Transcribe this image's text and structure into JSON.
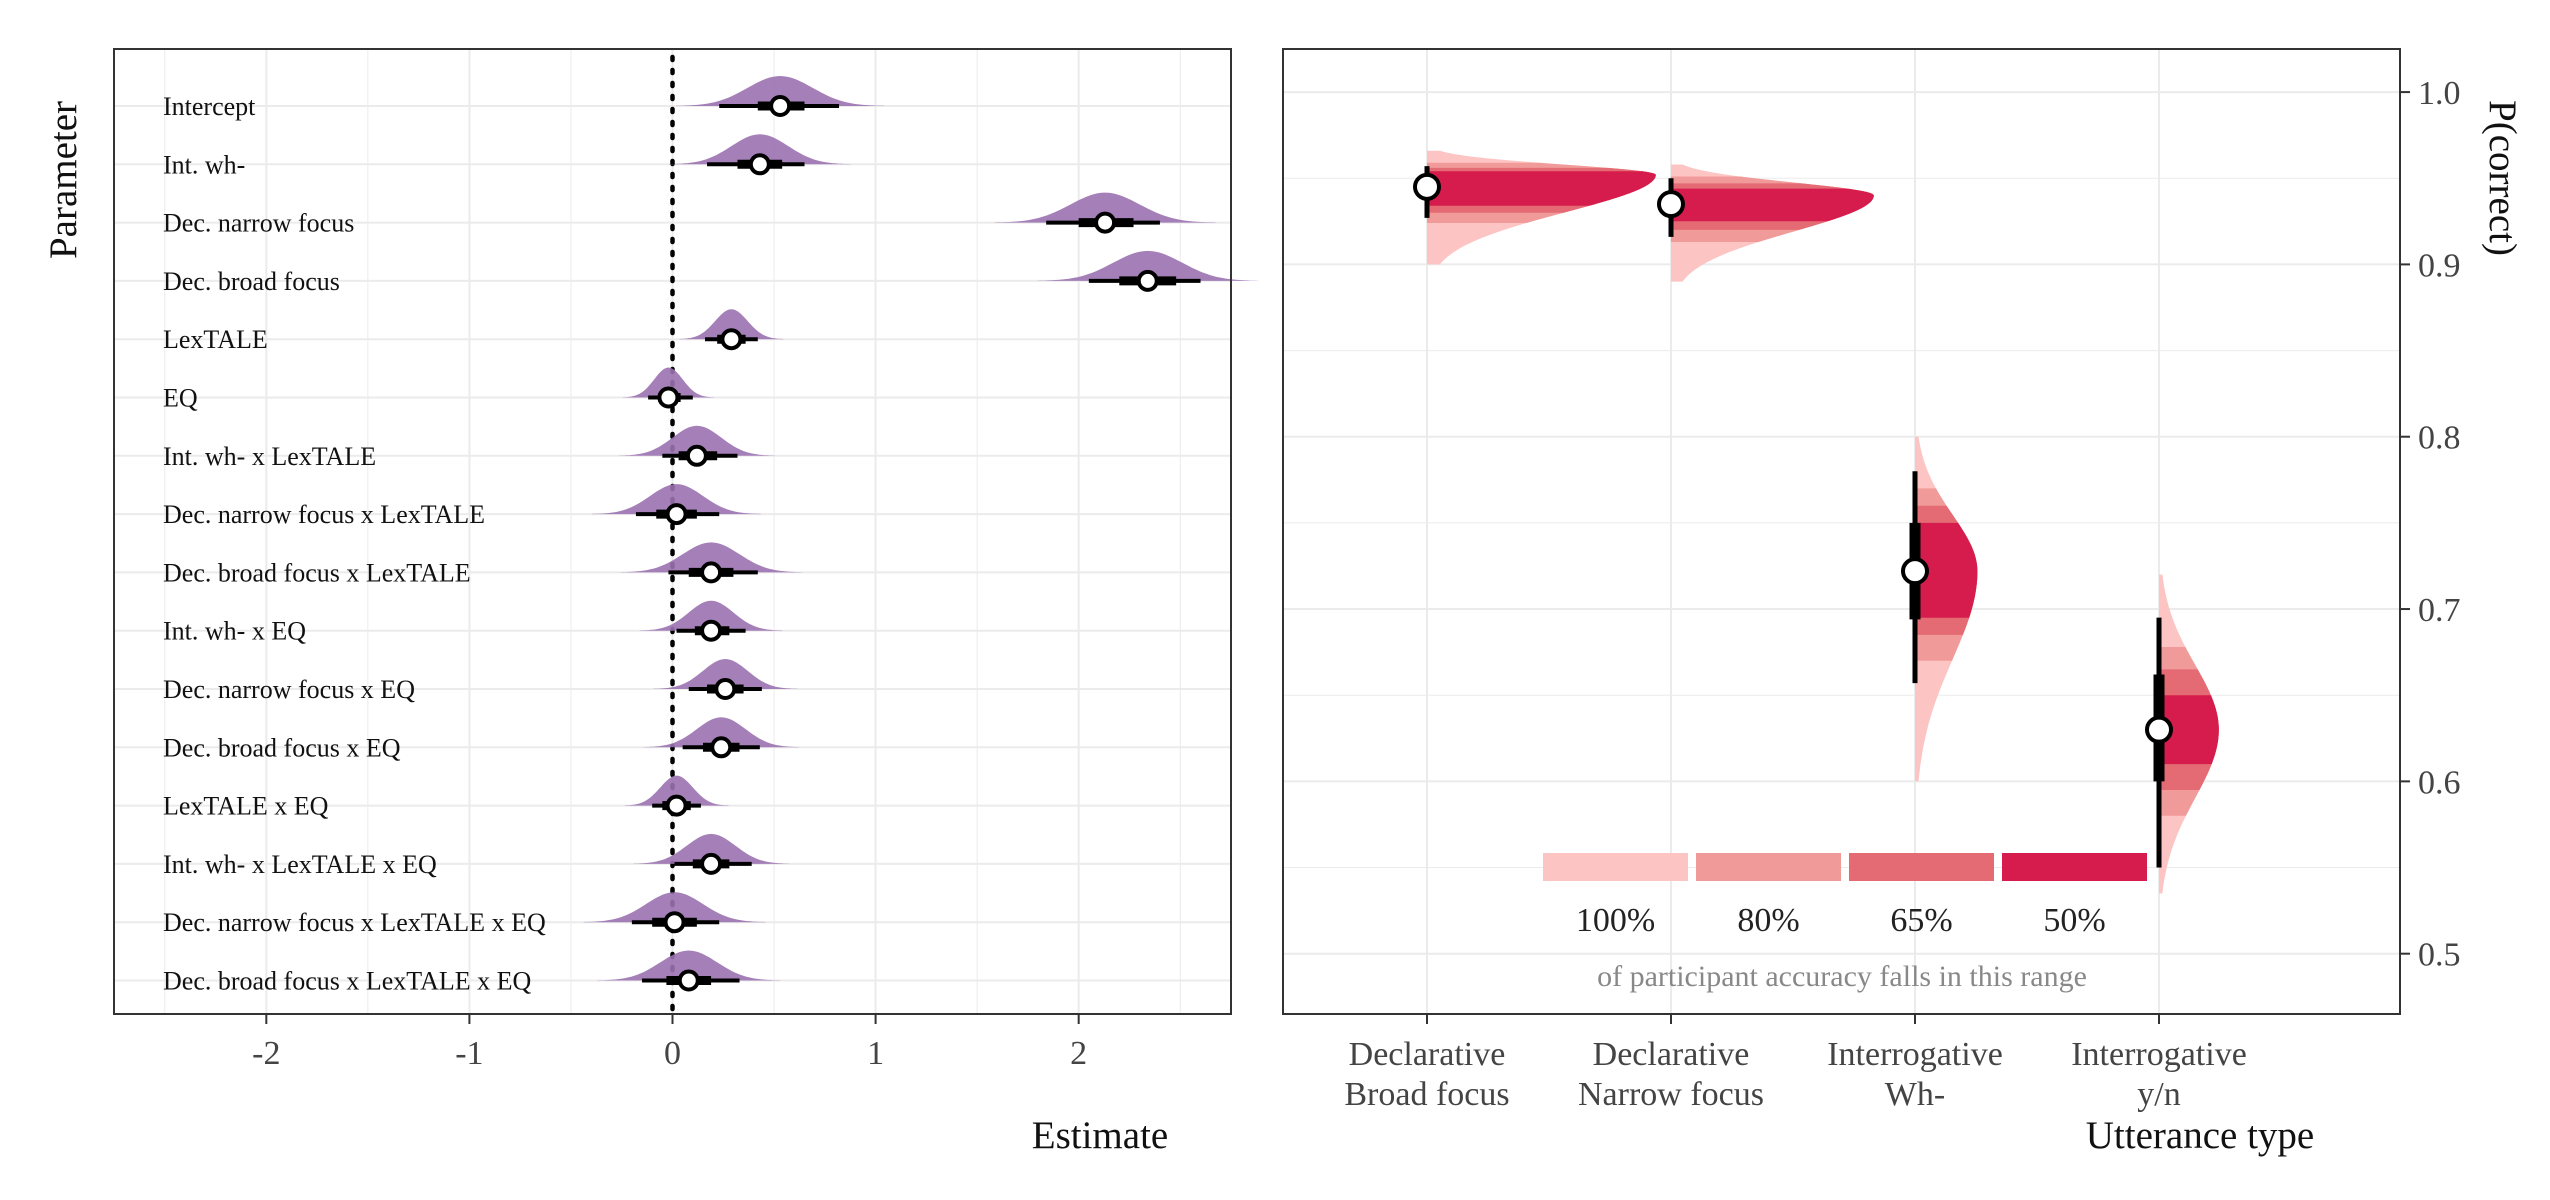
{
  "colors": {
    "violin": "#9b72b0",
    "interval": "#000000",
    "point_fill": "#ffffff",
    "band_100": "#fcc4c2",
    "band_80": "#f19a9a",
    "band_65": "#e46b74",
    "band_50": "#d61c4d",
    "grid": "#ebebeb",
    "panel_border": "#333333"
  },
  "chart_data": [
    {
      "type": "scatter",
      "subtype": "posterior-halfeye",
      "xlabel": "Estimate",
      "ylabel": "Parameter",
      "xlim": [
        -2.75,
        2.75
      ],
      "x_ticks": [
        -2,
        -1,
        0,
        1,
        2
      ],
      "x_tick_labels": [
        "-2",
        "-1",
        "0",
        "1",
        "2"
      ],
      "reference_line": 0,
      "grid": true,
      "parameters": [
        {
          "label": "Intercept",
          "estimate": 0.53,
          "ci66": [
            0.42,
            0.65
          ],
          "ci95": [
            0.23,
            0.82
          ],
          "spread": 0.16
        },
        {
          "label": "Int. wh-",
          "estimate": 0.43,
          "ci66": [
            0.32,
            0.54
          ],
          "ci95": [
            0.17,
            0.65
          ],
          "spread": 0.14
        },
        {
          "label": "Dec. narrow focus",
          "estimate": 2.13,
          "ci66": [
            2.0,
            2.27
          ],
          "ci95": [
            1.84,
            2.4
          ],
          "spread": 0.17
        },
        {
          "label": "Dec. broad focus",
          "estimate": 2.34,
          "ci66": [
            2.2,
            2.48
          ],
          "ci95": [
            2.05,
            2.6
          ],
          "spread": 0.17
        },
        {
          "label": "LexTALE",
          "estimate": 0.29,
          "ci66": [
            0.22,
            0.36
          ],
          "ci95": [
            0.16,
            0.42
          ],
          "spread": 0.08
        },
        {
          "label": "EQ",
          "estimate": -0.02,
          "ci66": [
            -0.07,
            0.04
          ],
          "ci95": [
            -0.12,
            0.1
          ],
          "spread": 0.07
        },
        {
          "label": "Int. wh- x LexTALE",
          "estimate": 0.12,
          "ci66": [
            0.03,
            0.22
          ],
          "ci95": [
            -0.05,
            0.32
          ],
          "spread": 0.12
        },
        {
          "label": "Dec. narrow focus x LexTALE",
          "estimate": 0.02,
          "ci66": [
            -0.08,
            0.12
          ],
          "ci95": [
            -0.18,
            0.23
          ],
          "spread": 0.13
        },
        {
          "label": "Dec. broad focus x LexTALE",
          "estimate": 0.19,
          "ci66": [
            0.08,
            0.3
          ],
          "ci95": [
            -0.02,
            0.42
          ],
          "spread": 0.14
        },
        {
          "label": "Int. wh- x EQ",
          "estimate": 0.19,
          "ci66": [
            0.11,
            0.28
          ],
          "ci95": [
            0.02,
            0.36
          ],
          "spread": 0.11
        },
        {
          "label": "Dec. narrow focus x EQ",
          "estimate": 0.26,
          "ci66": [
            0.17,
            0.35
          ],
          "ci95": [
            0.08,
            0.44
          ],
          "spread": 0.11
        },
        {
          "label": "Dec. broad focus x EQ",
          "estimate": 0.24,
          "ci66": [
            0.15,
            0.33
          ],
          "ci95": [
            0.05,
            0.43
          ],
          "spread": 0.12
        },
        {
          "label": "LexTALE x EQ",
          "estimate": 0.02,
          "ci66": [
            -0.05,
            0.09
          ],
          "ci95": [
            -0.1,
            0.14
          ],
          "spread": 0.08
        },
        {
          "label": "Int. wh- x LexTALE x EQ",
          "estimate": 0.19,
          "ci66": [
            0.1,
            0.28
          ],
          "ci95": [
            0.01,
            0.39
          ],
          "spread": 0.12
        },
        {
          "label": "Dec. narrow focus x LexTALE x EQ",
          "estimate": 0.01,
          "ci66": [
            -0.1,
            0.12
          ],
          "ci95": [
            -0.2,
            0.23
          ],
          "spread": 0.14
        },
        {
          "label": "Dec. broad focus x LexTALE x EQ",
          "estimate": 0.08,
          "ci66": [
            -0.03,
            0.19
          ],
          "ci95": [
            -0.15,
            0.33
          ],
          "spread": 0.14
        }
      ]
    },
    {
      "type": "area",
      "subtype": "posterior-predictive-density-by-category",
      "xlabel": "Utterance type",
      "ylabel": "P(correct)",
      "ylim": [
        0.465,
        1.025
      ],
      "y_ticks": [
        0.5,
        0.6,
        0.7,
        0.8,
        0.9,
        1.0
      ],
      "y_tick_labels": [
        "0.5",
        "0.6",
        "0.7",
        "0.8",
        "0.9",
        "1.0"
      ],
      "y_axis_side": "right",
      "grid": true,
      "categories": [
        {
          "line1": "Declarative",
          "line2": "Broad focus",
          "point": 0.945,
          "ci66": [
            0.938,
            0.951
          ],
          "ci95": [
            0.927,
            0.957
          ],
          "range_100": [
            0.9,
            0.966
          ],
          "range_80": [
            0.924,
            0.959
          ],
          "range_65": [
            0.93,
            0.956
          ],
          "range_50": [
            0.934,
            0.954
          ],
          "peak_density": 0.952,
          "peak_width": 0.44
        },
        {
          "line1": "Declarative",
          "line2": "Narrow focus",
          "point": 0.935,
          "ci66": [
            0.928,
            0.942
          ],
          "ci95": [
            0.916,
            0.95
          ],
          "range_100": [
            0.89,
            0.958
          ],
          "range_80": [
            0.913,
            0.951
          ],
          "range_65": [
            0.92,
            0.947
          ],
          "range_50": [
            0.925,
            0.944
          ],
          "peak_density": 0.94,
          "peak_width": 0.39
        },
        {
          "line1": "Interrogative",
          "line2": "Wh-",
          "point": 0.722,
          "ci66": [
            0.694,
            0.75
          ],
          "ci95": [
            0.657,
            0.78
          ],
          "range_100": [
            0.6,
            0.8
          ],
          "range_80": [
            0.67,
            0.77
          ],
          "range_65": [
            0.685,
            0.76
          ],
          "range_50": [
            0.695,
            0.75
          ],
          "peak_density": 0.722,
          "peak_width": 0.12
        },
        {
          "line1": "Interrogative",
          "line2": "y/n",
          "point": 0.63,
          "ci66": [
            0.6,
            0.662
          ],
          "ci95": [
            0.55,
            0.695
          ],
          "range_100": [
            0.535,
            0.72
          ],
          "range_80": [
            0.58,
            0.678
          ],
          "range_65": [
            0.595,
            0.665
          ],
          "range_50": [
            0.61,
            0.65
          ],
          "peak_density": 0.63,
          "peak_width": 0.115
        }
      ],
      "legend": {
        "placement": "bottom-center",
        "items": [
          {
            "label": "100%",
            "color_key": "band_100"
          },
          {
            "label": "80%",
            "color_key": "band_80"
          },
          {
            "label": "65%",
            "color_key": "band_65"
          },
          {
            "label": "50%",
            "color_key": "band_50"
          }
        ],
        "caption": "of participant accuracy falls in this range"
      }
    }
  ]
}
